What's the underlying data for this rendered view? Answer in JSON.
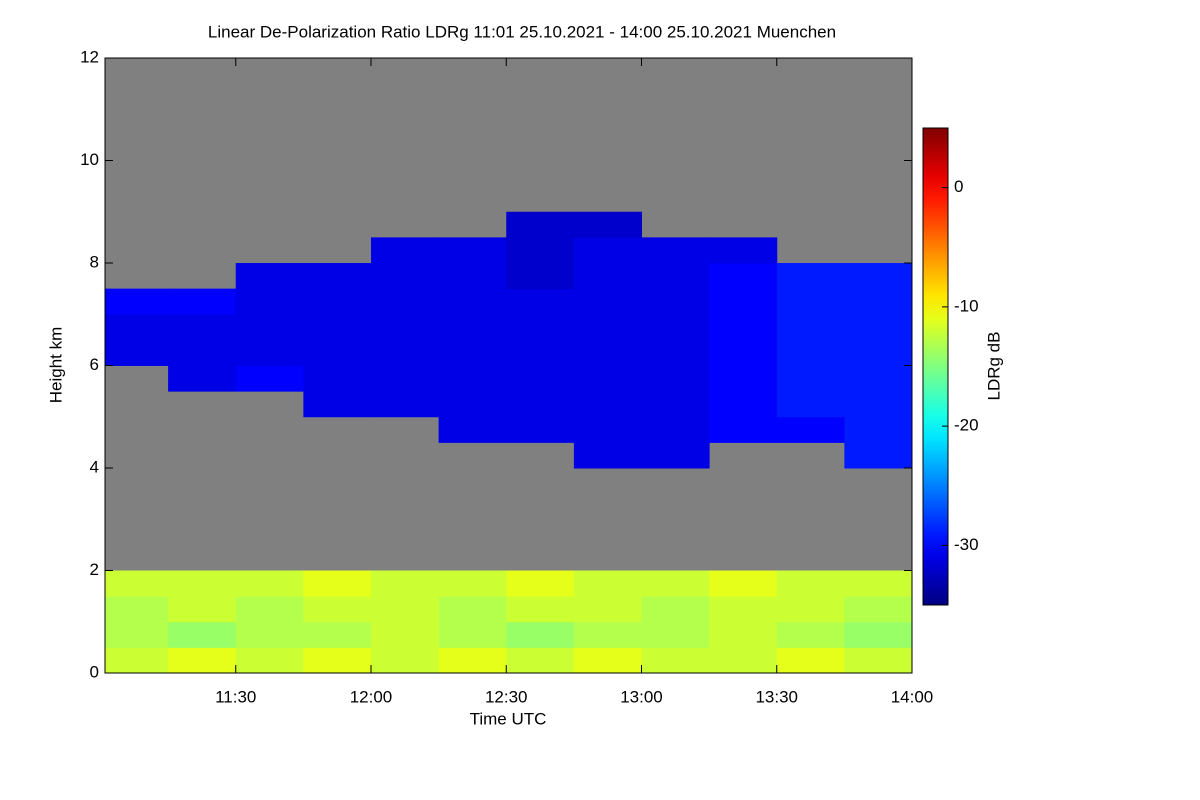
{
  "chart_data": {
    "type": "heatmap",
    "title": "Linear De-Polarization Ratio LDRg   11:01 25.10.2021 - 14:00 25.10.2021 Muenchen",
    "xlabel": "Time UTC",
    "ylabel": "Height km",
    "colorbar_label": "LDRg dB",
    "colormap": "jet",
    "missing_color": "#808080",
    "xlim": [
      11.0167,
      14.0
    ],
    "xticks": [
      {
        "value": 11.5,
        "label": "11:30"
      },
      {
        "value": 12.0,
        "label": "12:00"
      },
      {
        "value": 12.5,
        "label": "12:30"
      },
      {
        "value": 13.0,
        "label": "13:00"
      },
      {
        "value": 13.5,
        "label": "13:30"
      },
      {
        "value": 14.0,
        "label": "14:00"
      }
    ],
    "ylim": [
      0,
      12
    ],
    "yticks": [
      0,
      2,
      4,
      6,
      8,
      10,
      12
    ],
    "clim": [
      -35,
      5
    ],
    "cticks": [
      -30,
      -20,
      -10,
      0
    ],
    "xbins": [
      11.0,
      11.25,
      11.5,
      11.75,
      12.0,
      12.25,
      12.5,
      12.75,
      13.0,
      13.25,
      13.5,
      13.75,
      14.0
    ],
    "ybins": [
      0,
      0.5,
      1,
      1.5,
      2,
      2.5,
      3,
      3.5,
      4,
      4.5,
      5,
      5.5,
      6,
      6.5,
      7,
      7.5,
      8,
      8.5,
      9,
      9.5,
      10,
      10.5,
      11,
      11.5,
      12
    ],
    "z": [
      [
        -12,
        -11,
        -12,
        -11,
        -12,
        -11,
        -12,
        -11,
        -12,
        -12,
        -11,
        -12
      ],
      [
        -13,
        -14,
        -13,
        -13,
        -12,
        -13,
        -14,
        -13,
        -13,
        -12,
        -13,
        -14
      ],
      [
        -13,
        -12,
        -13,
        -12,
        -12,
        -13,
        -12,
        -12,
        -13,
        -12,
        -12,
        -13
      ],
      [
        -12,
        -12,
        -12,
        -11,
        -12,
        -12,
        -11,
        -12,
        -12,
        -11,
        -12,
        -12
      ],
      [
        null,
        null,
        null,
        null,
        null,
        null,
        null,
        null,
        null,
        null,
        null,
        null
      ],
      [
        null,
        null,
        null,
        null,
        null,
        null,
        null,
        null,
        null,
        null,
        null,
        null
      ],
      [
        null,
        null,
        null,
        null,
        null,
        null,
        null,
        null,
        null,
        null,
        null,
        null
      ],
      [
        null,
        null,
        null,
        null,
        null,
        null,
        null,
        null,
        null,
        null,
        null,
        null
      ],
      [
        null,
        null,
        null,
        null,
        null,
        null,
        null,
        -31,
        -31,
        null,
        null,
        -29
      ],
      [
        null,
        null,
        null,
        null,
        null,
        -31,
        -31,
        -31,
        -31,
        -30,
        -30,
        -29
      ],
      [
        null,
        null,
        null,
        -31,
        -31,
        -31,
        -31,
        -31,
        -31,
        -30,
        -29,
        -29
      ],
      [
        null,
        -31,
        -30,
        -31,
        -31,
        -31,
        -31,
        -31,
        -31,
        -30,
        -29,
        -29
      ],
      [
        -31,
        -31,
        -31,
        -31,
        -31,
        -31,
        -31,
        -31,
        -31,
        -30,
        -29,
        -29
      ],
      [
        -31,
        -31,
        -31,
        -31,
        -31,
        -31,
        -31,
        -31,
        -31,
        -30,
        -29,
        -29
      ],
      [
        -30,
        -30,
        -31,
        -31,
        -31,
        -31,
        -31,
        -31,
        -31,
        -30,
        -29,
        -29
      ],
      [
        null,
        null,
        -31,
        -31,
        -31,
        -31,
        -32,
        -31,
        -31,
        -30,
        -29,
        -29
      ],
      [
        null,
        null,
        null,
        null,
        -31,
        -31,
        -32,
        -31,
        -31,
        -31,
        null,
        null
      ],
      [
        null,
        null,
        null,
        null,
        null,
        null,
        -32,
        -32,
        null,
        null,
        null,
        null
      ],
      [
        null,
        null,
        null,
        null,
        null,
        null,
        null,
        null,
        null,
        null,
        null,
        null
      ],
      [
        null,
        null,
        null,
        null,
        null,
        null,
        null,
        null,
        null,
        null,
        null,
        null
      ],
      [
        null,
        null,
        null,
        null,
        null,
        null,
        null,
        null,
        null,
        null,
        null,
        null
      ],
      [
        null,
        null,
        null,
        null,
        null,
        null,
        null,
        null,
        null,
        null,
        null,
        null
      ],
      [
        null,
        null,
        null,
        null,
        null,
        null,
        null,
        null,
        null,
        null,
        null,
        null
      ],
      [
        null,
        null,
        null,
        null,
        null,
        null,
        null,
        null,
        null,
        null,
        null,
        null
      ]
    ]
  }
}
